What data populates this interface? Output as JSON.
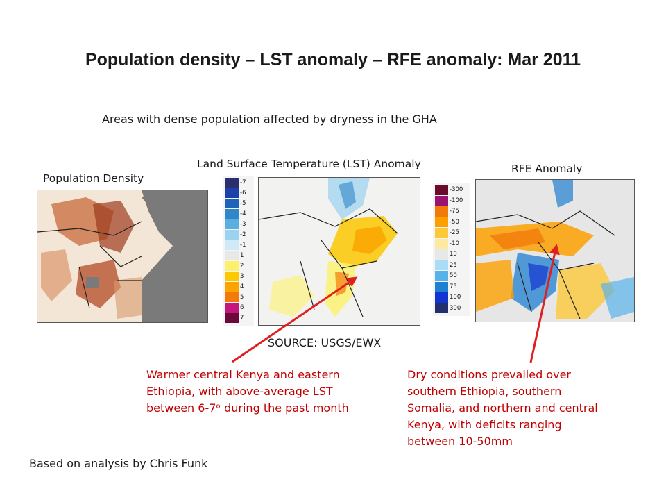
{
  "title": "Population density – LST anomaly – RFE anomaly: Mar 2011",
  "subtitle": "Areas with dense population affected by dryness in the GHA",
  "panels": {
    "population": {
      "label": "Population Density"
    },
    "lst": {
      "label": "Land Surface Temperature (LST) Anomaly",
      "legend": [
        {
          "value": "-7",
          "color": "#2b2f6e"
        },
        {
          "value": "-6",
          "color": "#1c3fa8"
        },
        {
          "value": "-5",
          "color": "#1f63b8"
        },
        {
          "value": "-4",
          "color": "#2f86c8"
        },
        {
          "value": "-3",
          "color": "#5aaee0"
        },
        {
          "value": "-2",
          "color": "#9ad2f0"
        },
        {
          "value": "-1",
          "color": "#cfe9f7"
        },
        {
          "value": "1",
          "color": "#e8e8e8"
        },
        {
          "value": "2",
          "color": "#fdf16a"
        },
        {
          "value": "3",
          "color": "#fcc800"
        },
        {
          "value": "4",
          "color": "#f9a400"
        },
        {
          "value": "5",
          "color": "#f37a08"
        },
        {
          "value": "6",
          "color": "#c4177d"
        },
        {
          "value": "7",
          "color": "#6b0a3a"
        }
      ]
    },
    "rfe": {
      "label": "RFE Anomaly",
      "legend": [
        {
          "value": "-300",
          "color": "#6b0a2a"
        },
        {
          "value": "-100",
          "color": "#9b1371"
        },
        {
          "value": "-75",
          "color": "#f07a0a"
        },
        {
          "value": "-50",
          "color": "#fca000"
        },
        {
          "value": "-25",
          "color": "#fdc93a"
        },
        {
          "value": "-10",
          "color": "#fde9a0"
        },
        {
          "value": "10",
          "color": "#e8e8e8"
        },
        {
          "value": "25",
          "color": "#a9dcf7"
        },
        {
          "value": "50",
          "color": "#58b2ea"
        },
        {
          "value": "75",
          "color": "#1f7fd0"
        },
        {
          "value": "100",
          "color": "#1234d0"
        },
        {
          "value": "300",
          "color": "#23306e"
        }
      ]
    }
  },
  "source": "SOURCE: USGS/EWX",
  "notes": {
    "lst_lines": [
      "Warmer central Kenya and eastern",
      "Ethiopia, with above-average LST",
      "between 6-7ᵒ during the past month"
    ],
    "rfe_lines": [
      "Dry conditions prevailed over",
      "southern Ethiopia, southern",
      "Somalia, and northern and central",
      "Kenya, with deficits ranging",
      "between 10-50mm"
    ]
  },
  "credit": "Based on analysis by Chris Funk",
  "colors": {
    "accent_red": "#c00000",
    "arrow": "#e02020"
  }
}
